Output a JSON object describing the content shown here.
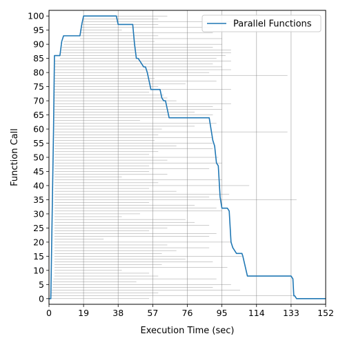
{
  "chart_data": {
    "type": "line",
    "title": "",
    "xlabel": "Execution Time (sec)",
    "ylabel": "Function Call",
    "xlim": [
      0,
      152
    ],
    "ylim": [
      -2,
      102
    ],
    "xticks": [
      0,
      19,
      38,
      57,
      76,
      95,
      114,
      133,
      152
    ],
    "yticks": [
      0,
      5,
      10,
      15,
      20,
      25,
      30,
      35,
      40,
      45,
      50,
      55,
      60,
      65,
      70,
      75,
      80,
      85,
      90,
      95,
      100
    ],
    "grid": "x-axis only (vertical lines at x ticks)",
    "legend_position": "upper right",
    "colors": {
      "series": "#1f77b4",
      "interval_lines": "#808080",
      "grid": "#b0b0b0"
    },
    "series": [
      {
        "name": "Parallel Functions",
        "x": [
          0,
          1,
          1.5,
          2,
          2.5,
          3,
          6,
          7,
          8,
          17,
          18,
          19,
          37,
          38,
          39,
          46,
          47,
          48,
          49,
          50,
          52,
          53,
          54,
          56,
          57,
          61,
          62,
          63,
          64,
          65,
          66,
          69,
          70,
          72,
          88,
          90,
          91,
          92,
          93,
          94,
          95,
          98,
          99,
          100,
          101,
          103,
          106,
          106.5,
          109,
          131,
          133,
          134,
          134.5,
          135,
          136,
          152
        ],
        "y": [
          0,
          0,
          20,
          40,
          60,
          86,
          86,
          91,
          93,
          93,
          97,
          100,
          100,
          97,
          97,
          97,
          90,
          85,
          85,
          84,
          82,
          82,
          80,
          74,
          74,
          74,
          71,
          70,
          70,
          67,
          64,
          64,
          64,
          64,
          64,
          56,
          54,
          48,
          47,
          36,
          32,
          32,
          31,
          20,
          18,
          16,
          16,
          15,
          8,
          8,
          8,
          7,
          1,
          1,
          0,
          0
        ]
      }
    ],
    "intervals": {
      "description": "one thin horizontal line per function call, from start to end time",
      "function_call": [
        0,
        1,
        2,
        3,
        4,
        5,
        6,
        7,
        8,
        9,
        10,
        11,
        12,
        13,
        14,
        15,
        16,
        17,
        18,
        19,
        20,
        21,
        22,
        23,
        24,
        25,
        26,
        27,
        28,
        29,
        30,
        31,
        32,
        33,
        34,
        35,
        36,
        37,
        38,
        39,
        40,
        41,
        42,
        43,
        44,
        45,
        46,
        47,
        48,
        49,
        50,
        51,
        52,
        53,
        54,
        55,
        56,
        57,
        58,
        59,
        60,
        61,
        62,
        63,
        64,
        65,
        66,
        67,
        68,
        69,
        70,
        71,
        72,
        73,
        74,
        75,
        76,
        77,
        78,
        79,
        80,
        81,
        82,
        83,
        84,
        85,
        86,
        87,
        88,
        89,
        90,
        91,
        92,
        93,
        94,
        95,
        96,
        97,
        98,
        99,
        100
      ],
      "start": [
        0,
        0.5,
        1,
        1.5,
        2,
        2,
        2,
        2.5,
        3,
        3,
        3,
        3,
        3,
        3,
        3,
        3,
        3,
        3,
        3,
        3,
        3,
        3,
        3,
        3,
        3,
        3,
        3,
        3,
        3,
        3,
        3,
        3,
        3,
        3,
        3,
        3,
        3,
        3,
        3,
        3,
        3,
        3,
        3,
        3,
        3,
        3,
        3,
        3,
        3,
        3,
        3,
        3,
        3,
        3,
        3,
        3,
        3,
        3,
        3,
        3,
        3,
        3,
        3,
        3,
        3,
        3,
        3,
        3,
        3,
        3,
        3,
        3,
        3,
        3,
        3,
        3,
        3,
        3,
        3,
        3,
        3,
        3,
        3,
        3,
        3,
        6,
        6,
        6,
        7,
        7,
        8,
        8,
        17,
        17,
        17,
        17,
        18,
        18,
        19,
        19,
        19
      ],
      "end": [
        55,
        134,
        60,
        105,
        90,
        100,
        48,
        92,
        60,
        55,
        40,
        98,
        62,
        90,
        75,
        106,
        62,
        70,
        88,
        65,
        100,
        30,
        88,
        92,
        55,
        65,
        88,
        80,
        75,
        40,
        50,
        95,
        92,
        80,
        55,
        136,
        88,
        99,
        70,
        55,
        110,
        60,
        95,
        40,
        65,
        55,
        88,
        55,
        95,
        65,
        93,
        55,
        60,
        90,
        70,
        90,
        58,
        90,
        60,
        131,
        62,
        80,
        92,
        50,
        88,
        90,
        80,
        95,
        90,
        100,
        70,
        65,
        63,
        55,
        100,
        60,
        75,
        92,
        58,
        131,
        88,
        100,
        95,
        90,
        100,
        92,
        97,
        100,
        100,
        90,
        95,
        58,
        95,
        60,
        90,
        40,
        90,
        60,
        105,
        60,
        65
      ]
    }
  }
}
